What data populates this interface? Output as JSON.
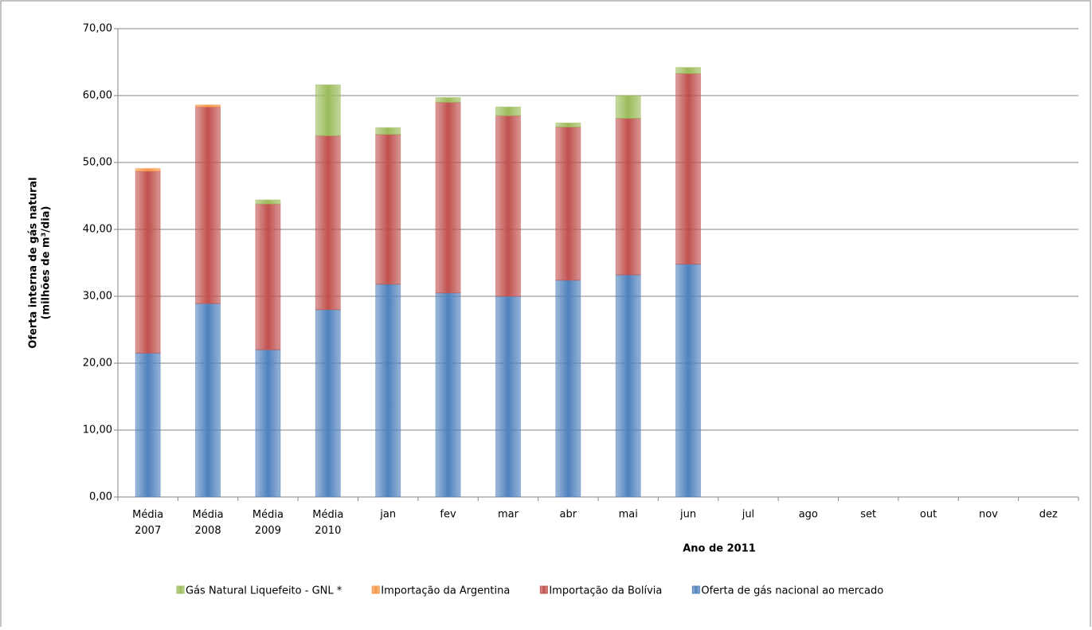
{
  "chart_data": {
    "type": "stacked_bar",
    "y_label": [
      "Oferta interna de gás natural",
      "(milhões de m³/dia)"
    ],
    "x_label": "Ano de 2011",
    "categories": [
      "Média 2007",
      "Média 2008",
      "Média 2009",
      "Média 2010",
      "jan",
      "fev",
      "mar",
      "abr",
      "mai",
      "jun",
      "jul",
      "ago",
      "set",
      "out",
      "nov",
      "dez"
    ],
    "series": [
      {
        "name": "Oferta de gás nacional ao mercado",
        "color": "#4f81bd",
        "values": [
          21.5,
          28.9,
          22.0,
          28.0,
          31.8,
          30.5,
          30.0,
          32.4,
          33.2,
          34.8,
          null,
          null,
          null,
          null,
          null,
          null
        ]
      },
      {
        "name": "Importação da Bolívia",
        "color": "#c0504d",
        "values": [
          27.2,
          29.4,
          21.8,
          26.0,
          22.4,
          28.5,
          27.0,
          22.9,
          23.4,
          28.5,
          null,
          null,
          null,
          null,
          null,
          null
        ]
      },
      {
        "name": "Importação da Argentina",
        "color": "#f79646",
        "values": [
          0.4,
          0.3,
          0,
          0,
          0,
          0,
          0,
          0,
          0,
          0,
          null,
          null,
          null,
          null,
          null,
          null
        ]
      },
      {
        "name": "Gás Natural Liquefeito - GNL *",
        "color": "#9bbb59",
        "values": [
          0,
          0,
          0.6,
          7.6,
          1.0,
          0.7,
          1.3,
          0.6,
          3.4,
          0.9,
          null,
          null,
          null,
          null,
          null,
          null
        ]
      }
    ],
    "ylim": [
      0,
      70
    ],
    "yticks": [
      {
        "value": 0,
        "label": "0,00"
      },
      {
        "value": 10,
        "label": "10,00"
      },
      {
        "value": 20,
        "label": "20,00"
      },
      {
        "value": 30,
        "label": "30,00"
      },
      {
        "value": 40,
        "label": "40,00"
      },
      {
        "value": 50,
        "label": "50,00"
      },
      {
        "value": 60,
        "label": "60,00"
      },
      {
        "value": 70,
        "label": "70,00"
      }
    ],
    "grid": true,
    "legend": "bottom"
  }
}
